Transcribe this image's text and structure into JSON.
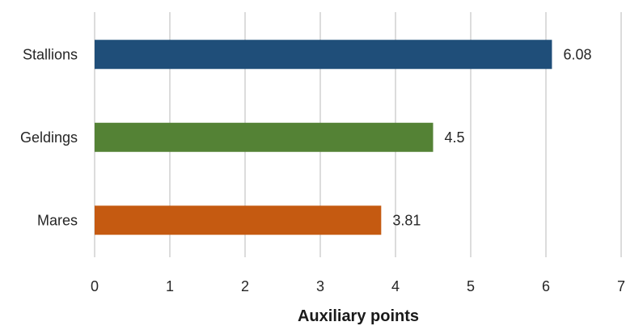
{
  "chart_data": {
    "type": "bar",
    "orientation": "horizontal",
    "categories": [
      "Stallions",
      "Geldings",
      "Mares"
    ],
    "values": [
      6.08,
      4.5,
      3.81
    ],
    "value_labels": [
      "6.08",
      "4.5",
      "3.81"
    ],
    "colors": [
      "#1f4e79",
      "#548235",
      "#c55a11"
    ],
    "xlabel": "Auxiliary points",
    "xlim": [
      0,
      7
    ],
    "xticks": [
      "0",
      "1",
      "2",
      "3",
      "4",
      "5",
      "6",
      "7"
    ],
    "grid": "vertical",
    "legend": "none"
  }
}
